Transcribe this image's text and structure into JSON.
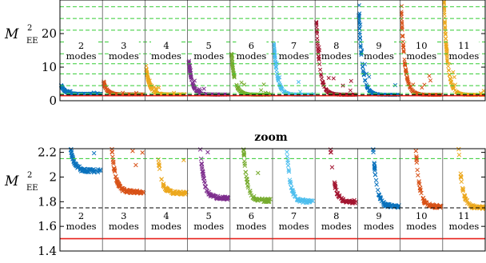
{
  "chart_data": [
    {
      "type": "scatter",
      "title": "",
      "ylabel": "M",
      "ylabel_sub_top": "2",
      "ylabel_sub_bottom": "EE",
      "ylim": [
        0,
        30
      ],
      "yticks": [
        0,
        10,
        20
      ],
      "ytick_labels": [
        "0",
        "10",
        "20"
      ],
      "grid": true,
      "reference_lines": [
        {
          "y": 1.5,
          "color": "#e8221c",
          "style": "solid"
        },
        {
          "y": 1.75,
          "color": "#000000",
          "style": "dashed"
        },
        {
          "y": 2.15,
          "color": "#33cc33",
          "style": "dashed"
        },
        {
          "y": 4.5,
          "color": "#33cc33",
          "style": "dashed"
        },
        {
          "y": 8.0,
          "color": "#33cc33",
          "style": "dashed"
        },
        {
          "y": 11.0,
          "color": "#33cc33",
          "style": "dashed"
        },
        {
          "y": 14.0,
          "color": "#33cc33",
          "style": "dashed"
        },
        {
          "y": 17.5,
          "color": "#33cc33",
          "style": "dashed"
        },
        {
          "y": 21.0,
          "color": "#33cc33",
          "style": "dashed"
        },
        {
          "y": 24.5,
          "color": "#33cc33",
          "style": "dashed"
        },
        {
          "y": 28.0,
          "color": "#33cc33",
          "style": "dashed"
        }
      ],
      "groups": [
        {
          "num": "2",
          "unit": "modes",
          "color": "#0a72bd",
          "peak": 4.6,
          "floor": 2.05
        },
        {
          "num": "3",
          "unit": "modes",
          "color": "#d85218",
          "peak": 5.2,
          "floor": 1.88
        },
        {
          "num": "4",
          "unit": "modes",
          "color": "#eca81e",
          "peak": 9.5,
          "floor": 1.87
        },
        {
          "num": "5",
          "unit": "modes",
          "color": "#7e2e8e",
          "peak": 11.5,
          "floor": 1.83
        },
        {
          "num": "6",
          "unit": "modes",
          "color": "#77ac2f",
          "peak": 14.0,
          "floor": 1.81
        },
        {
          "num": "7",
          "unit": "modes",
          "color": "#4dbeee",
          "peak": 17.0,
          "floor": 1.8
        },
        {
          "num": "8",
          "unit": "modes",
          "color": "#a2142f",
          "peak": 23.5,
          "floor": 1.8
        },
        {
          "num": "9",
          "unit": "modes",
          "color": "#0a72bd",
          "peak": 25.5,
          "floor": 1.76
        },
        {
          "num": "10",
          "unit": "modes",
          "color": "#d85218",
          "peak": 26.5,
          "floor": 1.76
        },
        {
          "num": "11",
          "unit": "modes",
          "color": "#eca81e",
          "peak": 29.5,
          "floor": 1.75
        }
      ]
    },
    {
      "type": "scatter",
      "title": "zoom",
      "ylabel": "M",
      "ylabel_sub_top": "2",
      "ylabel_sub_bottom": "EE",
      "ylim": [
        1.4,
        2.23
      ],
      "yticks": [
        1.4,
        1.6,
        1.8,
        2.0,
        2.2
      ],
      "ytick_labels": [
        "1.4",
        "1.6",
        "1.8",
        "2",
        "2.2"
      ],
      "grid": false,
      "reference_lines": [
        {
          "y": 1.5,
          "color": "#e8221c",
          "style": "solid"
        },
        {
          "y": 1.75,
          "color": "#000000",
          "style": "dashed"
        },
        {
          "y": 2.15,
          "color": "#33cc33",
          "style": "dashed"
        }
      ]
    }
  ]
}
